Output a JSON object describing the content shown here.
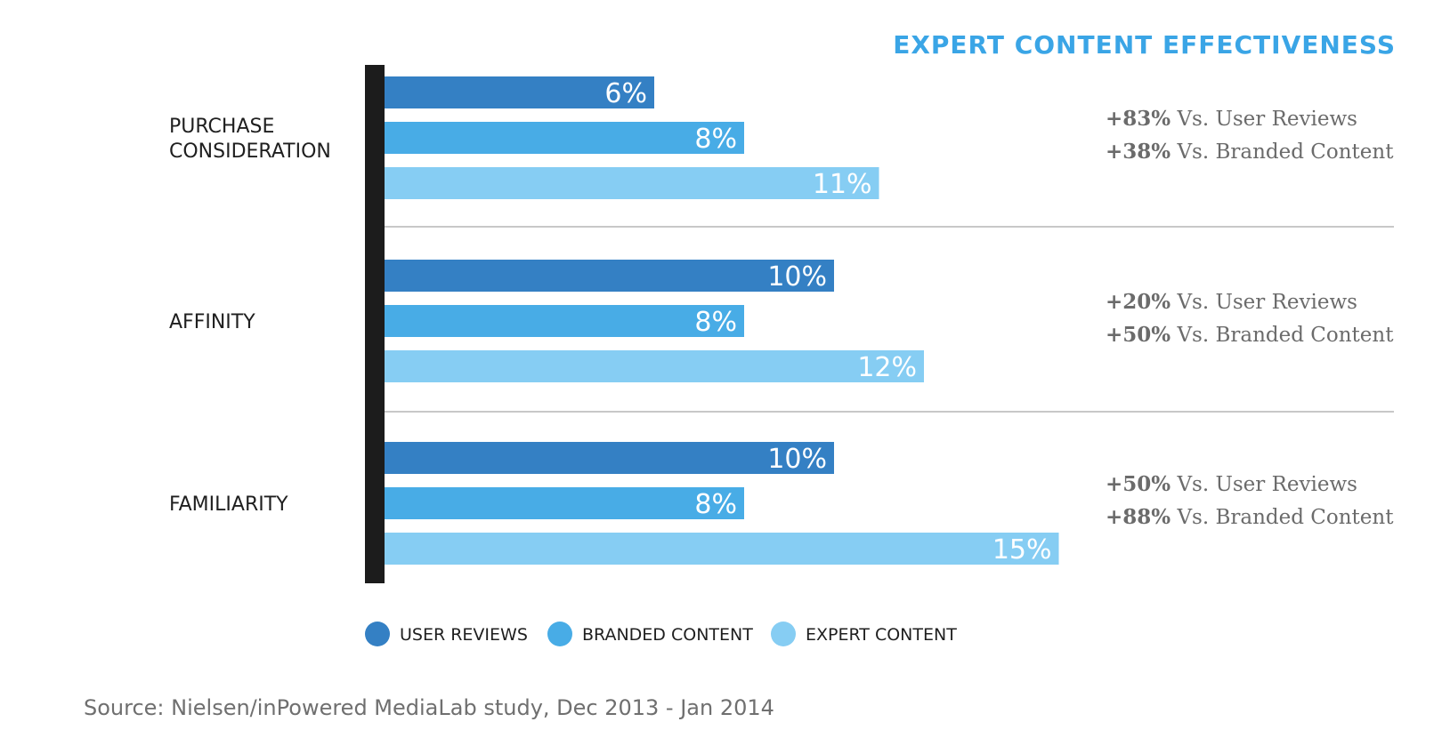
{
  "chart_data": {
    "type": "bar",
    "orientation": "horizontal",
    "title": "EXPERT CONTENT EFFECTIVENESS",
    "categories": [
      "PURCHASE CONSIDERATION",
      "AFFINITY",
      "FAMILIARITY"
    ],
    "category_lines": [
      [
        "PURCHASE",
        "CONSIDERATION"
      ],
      [
        "AFFINITY"
      ],
      [
        "FAMILIARITY"
      ]
    ],
    "series": [
      {
        "name": "USER REVIEWS",
        "values": [
          6,
          10,
          10
        ],
        "labels": [
          "6%",
          "10%",
          "10%"
        ],
        "color": "#3480c4"
      },
      {
        "name": "BRANDED CONTENT",
        "values": [
          8,
          8,
          8
        ],
        "labels": [
          "8%",
          "8%",
          "8%"
        ],
        "color": "#48ace6"
      },
      {
        "name": "EXPERT CONTENT",
        "values": [
          11,
          12,
          15
        ],
        "labels": [
          "11%",
          "12%",
          "15%"
        ],
        "color": "#86cdf3"
      }
    ],
    "unit": "%",
    "xlim": [
      0,
      15
    ],
    "grid": false,
    "legend_position": "bottom",
    "annotations": [
      [
        {
          "bold": "+83%",
          "text": " Vs. User Reviews"
        },
        {
          "bold": "+38%",
          "text": " Vs. Branded Content"
        }
      ],
      [
        {
          "bold": "+20%",
          "text": " Vs. User Reviews"
        },
        {
          "bold": "+50%",
          "text": " Vs. Branded Content"
        }
      ],
      [
        {
          "bold": "+50%",
          "text": " Vs. User Reviews"
        },
        {
          "bold": "+88%",
          "text": " Vs. Branded Content"
        }
      ]
    ],
    "colors": {
      "title": "#3aa5e6",
      "axis": "#1c1c1c",
      "separator": "#b5b5b5",
      "category_text": "#1f1f1f",
      "annotation_text": "#6b6b6b",
      "bar_label": "#ffffff"
    }
  },
  "source": "Source: Nielsen/inPowered MediaLab study, Dec 2013 - Jan 2014"
}
